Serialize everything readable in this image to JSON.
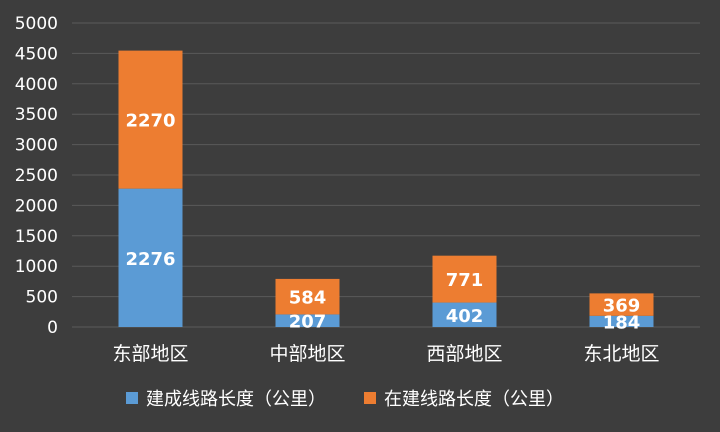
{
  "chart_data": {
    "type": "bar",
    "stacked": true,
    "categories": [
      "东部地区",
      "中部地区",
      "西部地区",
      "东北地区"
    ],
    "series": [
      {
        "name": "建成线路长度（公里）",
        "color": "#5b9bd5",
        "values": [
          2276,
          207,
          402,
          184
        ]
      },
      {
        "name": "在建线路长度（公里）",
        "color": "#ed7d31",
        "values": [
          2270,
          584,
          771,
          369
        ]
      }
    ],
    "y_ticks": [
      "0",
      "500",
      "1000",
      "1500",
      "2000",
      "2500",
      "3000",
      "3500",
      "4000",
      "4500",
      "5000"
    ],
    "ylim": [
      0,
      5000
    ],
    "grid": true,
    "legend_position": "bottom",
    "background_color": "#3d3d3d",
    "text_color": "#ffffff",
    "gridline_color": "#5a5a5a"
  }
}
